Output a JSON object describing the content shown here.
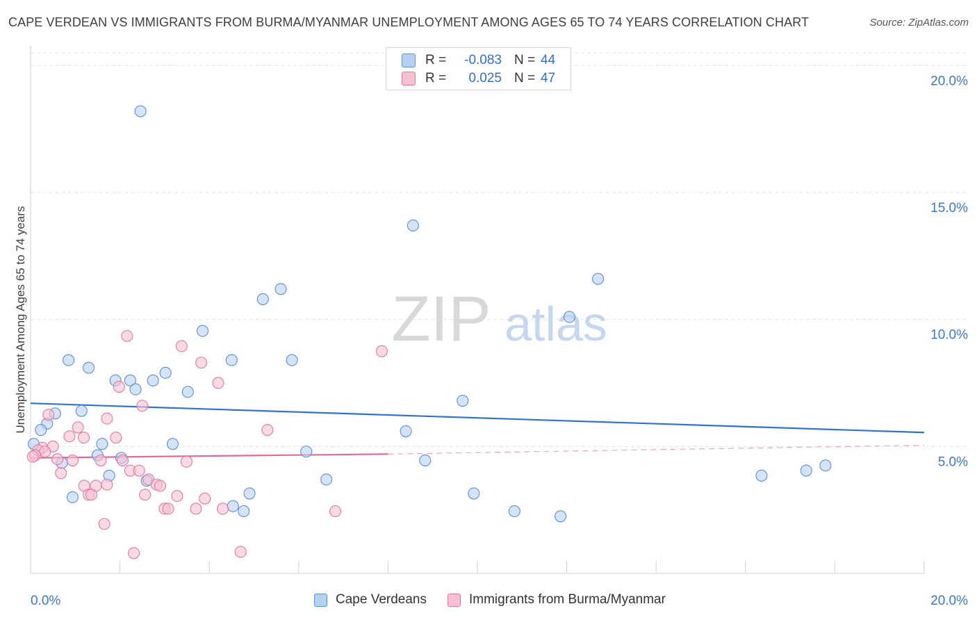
{
  "title": "CAPE VERDEAN VS IMMIGRANTS FROM BURMA/MYANMAR UNEMPLOYMENT AMONG AGES 65 TO 74 YEARS CORRELATION CHART",
  "source": "Source: ZipAtlas.com",
  "watermark": {
    "zip": "ZIP",
    "atlas": "atlas"
  },
  "legend": {
    "r_label": "R =",
    "n_label": "N =",
    "series": [
      {
        "r": "-0.083",
        "n": "44"
      },
      {
        "r": "0.025",
        "n": "47"
      }
    ]
  },
  "bottom_legend": [
    "Cape Verdeans",
    "Immigrants from Burma/Myanmar"
  ],
  "chart_data": {
    "type": "scatter",
    "xlabel": "",
    "ylabel": "Unemployment Among Ages 65 to 74 years",
    "xlim": [
      0,
      20
    ],
    "ylim": [
      0,
      20.5
    ],
    "x_tick_labels": {
      "min": "0.0%",
      "max": "20.0%"
    },
    "y_ticks": [
      5,
      10,
      15,
      20
    ],
    "y_tick_labels": [
      "5.0%",
      "10.0%",
      "15.0%",
      "20.0%"
    ],
    "grid": true,
    "series": [
      {
        "name": "Cape Verdeans",
        "color": "#5b8fd6",
        "fill": "#b7d1f3",
        "trend": {
          "x": [
            0,
            20
          ],
          "y": [
            6.7,
            5.55
          ]
        },
        "points": [
          [
            2.46,
            18.2
          ],
          [
            8.56,
            13.7
          ],
          [
            12.7,
            11.6
          ],
          [
            5.6,
            11.2
          ],
          [
            5.2,
            10.8
          ],
          [
            12.06,
            10.1
          ],
          [
            3.85,
            9.55
          ],
          [
            0.85,
            8.4
          ],
          [
            4.5,
            8.4
          ],
          [
            5.85,
            8.4
          ],
          [
            1.3,
            8.1
          ],
          [
            3.02,
            7.9
          ],
          [
            1.9,
            7.6
          ],
          [
            2.23,
            7.6
          ],
          [
            2.74,
            7.6
          ],
          [
            2.35,
            7.25
          ],
          [
            3.52,
            7.15
          ],
          [
            9.67,
            6.8
          ],
          [
            1.14,
            6.4
          ],
          [
            0.55,
            6.3
          ],
          [
            0.37,
            5.9
          ],
          [
            0.23,
            5.65
          ],
          [
            8.4,
            5.6
          ],
          [
            1.6,
            5.1
          ],
          [
            3.18,
            5.1
          ],
          [
            6.17,
            4.8
          ],
          [
            1.5,
            4.65
          ],
          [
            2.03,
            4.55
          ],
          [
            0.7,
            4.35
          ],
          [
            0.07,
            5.1
          ],
          [
            8.83,
            4.45
          ],
          [
            1.76,
            3.85
          ],
          [
            2.6,
            3.65
          ],
          [
            6.62,
            3.7
          ],
          [
            9.92,
            3.15
          ],
          [
            4.9,
            3.15
          ],
          [
            0.94,
            3.0
          ],
          [
            4.53,
            2.65
          ],
          [
            4.77,
            2.45
          ],
          [
            10.83,
            2.45
          ],
          [
            11.86,
            2.25
          ],
          [
            16.36,
            3.85
          ],
          [
            17.79,
            4.25
          ],
          [
            17.36,
            4.05
          ]
        ]
      },
      {
        "name": "Immigrants from Burma/Myanmar",
        "color": "#e27aa0",
        "fill": "#f5c0d2",
        "trend": {
          "x": [
            0,
            8
          ],
          "y": [
            4.55,
            4.7
          ]
        },
        "trend_dashed": {
          "x": [
            8,
            20
          ],
          "y": [
            4.7,
            5.05
          ]
        },
        "points": [
          [
            2.16,
            9.35
          ],
          [
            3.38,
            8.95
          ],
          [
            7.86,
            8.75
          ],
          [
            3.82,
            8.3
          ],
          [
            4.2,
            7.5
          ],
          [
            1.98,
            7.35
          ],
          [
            2.5,
            6.6
          ],
          [
            0.4,
            6.25
          ],
          [
            1.71,
            6.1
          ],
          [
            1.06,
            5.75
          ],
          [
            5.3,
            5.65
          ],
          [
            1.19,
            5.35
          ],
          [
            0.87,
            5.4
          ],
          [
            1.91,
            5.35
          ],
          [
            0.5,
            5.0
          ],
          [
            0.26,
            4.95
          ],
          [
            0.17,
            4.85
          ],
          [
            0.32,
            4.8
          ],
          [
            0.1,
            4.65
          ],
          [
            0.05,
            4.6
          ],
          [
            0.6,
            4.5
          ],
          [
            0.94,
            4.45
          ],
          [
            1.57,
            4.45
          ],
          [
            2.06,
            4.45
          ],
          [
            3.49,
            4.4
          ],
          [
            0.68,
            3.95
          ],
          [
            2.23,
            4.05
          ],
          [
            2.43,
            4.05
          ],
          [
            2.64,
            3.7
          ],
          [
            2.82,
            3.5
          ],
          [
            1.71,
            3.5
          ],
          [
            1.2,
            3.45
          ],
          [
            1.46,
            3.45
          ],
          [
            2.9,
            3.45
          ],
          [
            1.3,
            3.1
          ],
          [
            1.36,
            3.1
          ],
          [
            2.56,
            3.1
          ],
          [
            3.28,
            3.05
          ],
          [
            3.9,
            2.95
          ],
          [
            3.0,
            2.55
          ],
          [
            3.08,
            2.55
          ],
          [
            3.7,
            2.55
          ],
          [
            4.3,
            2.55
          ],
          [
            6.82,
            2.45
          ],
          [
            1.65,
            1.95
          ],
          [
            2.31,
            0.8
          ],
          [
            4.7,
            0.85
          ]
        ]
      }
    ]
  }
}
